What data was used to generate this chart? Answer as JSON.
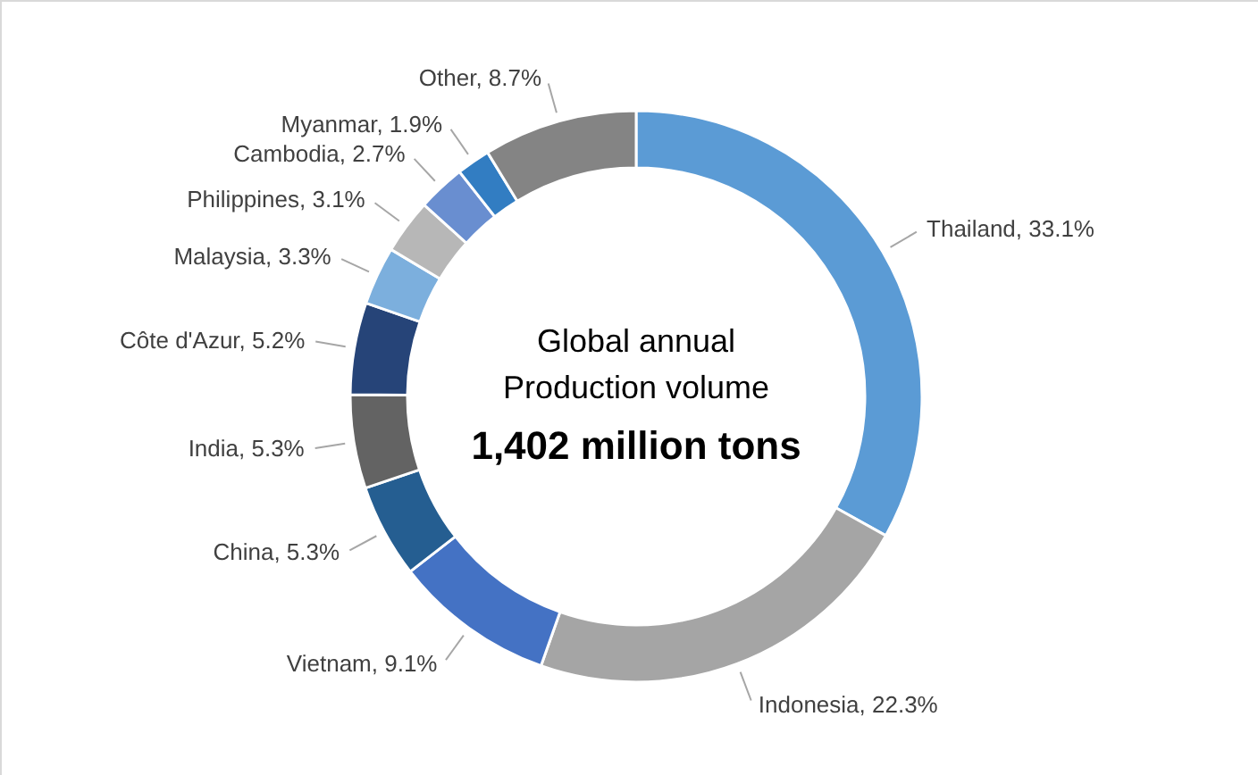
{
  "chart_data": {
    "type": "donut",
    "categories": [
      "Thailand",
      "Indonesia",
      "Vietnam",
      "China",
      "India",
      "Côte d'Azur",
      "Malaysia",
      "Philippines",
      "Cambodia",
      "Myanmar",
      "Other"
    ],
    "values": [
      33.1,
      22.3,
      9.1,
      5.3,
      5.3,
      5.2,
      3.3,
      3.1,
      2.7,
      1.9,
      8.7
    ],
    "colors": [
      "#5b9bd5",
      "#a5a5a5",
      "#4472c4",
      "#255e91",
      "#636363",
      "#264478",
      "#7cafdd",
      "#b7b7b7",
      "#698ed0",
      "#327dc2",
      "#848484"
    ],
    "value_labels": [
      "33.1%",
      "22.3%",
      "9.1%",
      "5.3%",
      "5.3%",
      "5.2%",
      "3.3%",
      "3.1%",
      "2.7%",
      "1.9%",
      "8.7%"
    ],
    "annotations": [
      "Global annual",
      "Production volume",
      "1,402 million tons"
    ]
  }
}
